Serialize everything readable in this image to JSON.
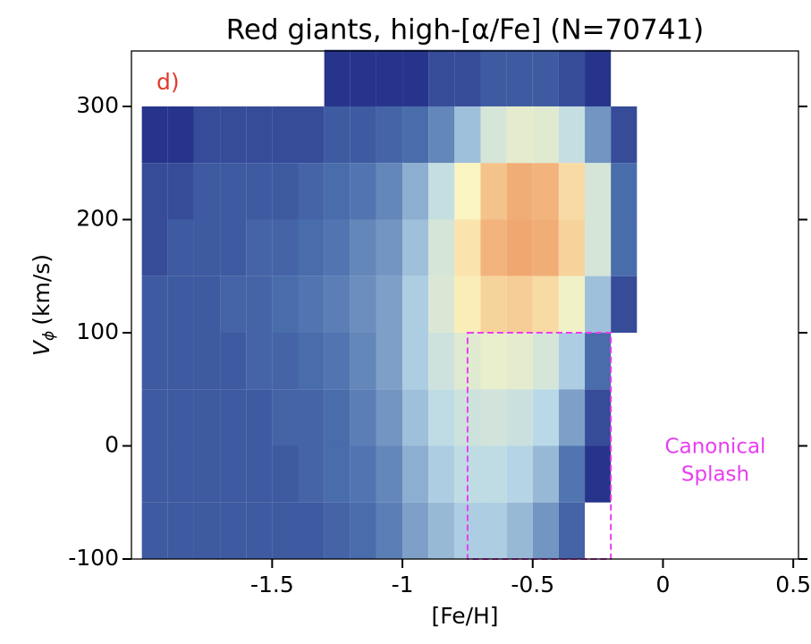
{
  "chart_data": {
    "type": "hist2d",
    "title": "Red giants, high-[α/Fe] (N=70741)",
    "xlabel": "[Fe/H]",
    "ylabel": {
      "text": "V",
      "subscript": "ϕ",
      "unit": "(km/s)"
    },
    "panel_label": "d)",
    "xlim": [
      -2.04,
      0.52
    ],
    "ylim": [
      -100,
      349
    ],
    "xticks": [
      -1.5,
      -1,
      -0.5,
      0,
      0.5
    ],
    "yticks": [
      300,
      200,
      100,
      0,
      -100
    ],
    "xbins": [
      -2.0,
      -1.9,
      -1.8,
      -1.7,
      -1.6,
      -1.5,
      -1.4,
      -1.3,
      -1.2,
      -1.1,
      -1.0,
      -0.9,
      -0.8,
      -0.7,
      -0.6,
      -0.5,
      -0.4,
      -0.3,
      -0.2,
      -0.1
    ],
    "ybins": [
      350,
      300,
      250,
      200,
      150,
      100,
      50,
      0,
      -50,
      -100
    ],
    "z": [
      [
        0,
        0,
        0,
        0,
        0,
        0,
        0,
        1,
        1,
        1,
        1,
        2,
        2,
        3,
        3,
        3,
        2,
        1,
        0
      ],
      [
        1,
        1,
        2,
        2,
        2,
        2,
        2,
        3,
        3,
        4,
        5,
        8,
        20,
        60,
        90,
        80,
        40,
        10,
        2
      ],
      [
        2,
        2,
        3,
        3,
        3,
        3,
        4,
        5,
        6,
        8,
        15,
        40,
        150,
        500,
        800,
        700,
        300,
        60,
        5
      ],
      [
        2,
        3,
        3,
        3,
        4,
        4,
        5,
        6,
        8,
        10,
        20,
        60,
        250,
        700,
        900,
        800,
        350,
        60,
        5
      ],
      [
        3,
        3,
        3,
        4,
        4,
        5,
        6,
        7,
        9,
        12,
        25,
        70,
        200,
        350,
        400,
        300,
        120,
        20,
        2
      ],
      [
        3,
        3,
        3,
        3,
        4,
        4,
        5,
        6,
        8,
        12,
        25,
        50,
        80,
        100,
        90,
        60,
        25,
        5,
        0
      ],
      [
        3,
        3,
        3,
        3,
        3,
        4,
        4,
        5,
        7,
        10,
        20,
        35,
        50,
        55,
        45,
        30,
        12,
        2,
        0
      ],
      [
        3,
        3,
        3,
        3,
        3,
        3,
        4,
        5,
        6,
        8,
        15,
        25,
        35,
        35,
        28,
        18,
        6,
        1,
        0
      ],
      [
        3,
        3,
        3,
        3,
        3,
        3,
        3,
        4,
        5,
        7,
        12,
        18,
        25,
        25,
        18,
        10,
        4,
        0,
        0
      ]
    ],
    "log_color": true,
    "colors": [
      "#27348b",
      "#4b6fad",
      "#b9d9e8",
      "#fdf6c0",
      "#f0a870"
    ],
    "region": {
      "x": [
        -0.75,
        -0.2
      ],
      "y": [
        -100,
        100
      ],
      "color": "#e83ef0"
    },
    "annotation": {
      "lines": [
        "Canonical",
        "Splash"
      ],
      "color": "#e83ef0"
    },
    "panel_label_color": "#e03a2c"
  }
}
